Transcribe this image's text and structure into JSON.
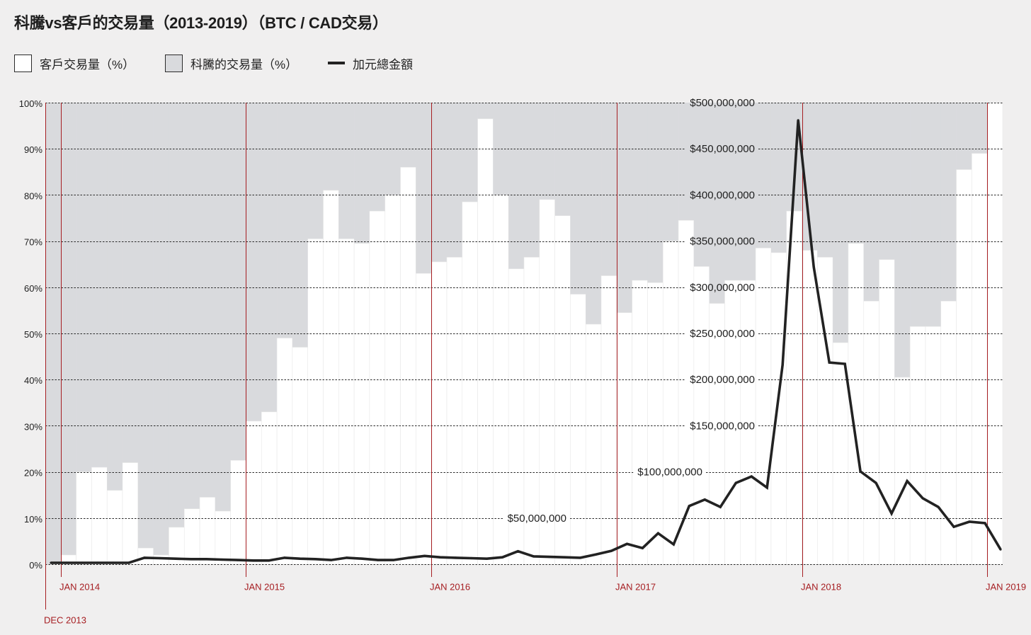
{
  "chart_data": {
    "type": "bar",
    "title": "科騰vs客戶的交易量（2013-2019）（BTC / CAD交易）",
    "series": [
      {
        "name": "客戶交易量（%）",
        "color": "#ffffff",
        "values": [
          0,
          2,
          20,
          21,
          16,
          22,
          3.5,
          2,
          8,
          12,
          14.5,
          11.5,
          22.5,
          31,
          33,
          49,
          47,
          70.5,
          81,
          70.5,
          69.5,
          76.5,
          80,
          86,
          63,
          65.5,
          66.5,
          78.5,
          96.5,
          80,
          64,
          66.5,
          79,
          75.5,
          58.5,
          52,
          62.5,
          54.5,
          61.5,
          61,
          70,
          74.5,
          64.5,
          56.5,
          61.5,
          61.5,
          68.5,
          67.5,
          76.5,
          68,
          66.5,
          48,
          69.5,
          57,
          66,
          40.5,
          51.5,
          51.5,
          57,
          85.5,
          89,
          100
        ]
      },
      {
        "name": "科騰的交易量（%）",
        "color": "#d9dadd",
        "values": [
          100,
          98,
          80,
          79,
          84,
          78,
          96.5,
          98,
          92,
          88,
          85.5,
          88.5,
          77.5,
          69,
          67,
          51,
          53,
          29.5,
          19,
          29.5,
          30.5,
          23.5,
          20,
          14,
          37,
          34.5,
          33.5,
          21.5,
          3.5,
          20,
          36,
          33.5,
          21,
          24.5,
          41.5,
          48,
          37.5,
          45.5,
          38.5,
          39,
          30,
          25.5,
          35.5,
          43.5,
          38.5,
          38.5,
          31.5,
          32.5,
          23.5,
          32,
          33.5,
          52,
          30.5,
          43,
          34,
          59.5,
          48.5,
          48.5,
          43,
          14.5,
          11,
          0
        ]
      },
      {
        "name": "加元總金額",
        "type": "line",
        "color": "#222222",
        "values": [
          1500000,
          1500000,
          1500000,
          1500000,
          1500000,
          1500000,
          7000000,
          6500000,
          6000000,
          5500000,
          5500000,
          5000000,
          4500000,
          4000000,
          4000000,
          7000000,
          6000000,
          5500000,
          4500000,
          7000000,
          6000000,
          4500000,
          4500000,
          7000000,
          9000000,
          7500000,
          7000000,
          6500000,
          6000000,
          7500000,
          14000000,
          8500000,
          8000000,
          7500000,
          7000000,
          10500000,
          14500000,
          22000000,
          17500000,
          33500000,
          21500000,
          63000000,
          70000000,
          62000000,
          88000000,
          95000000,
          83000000,
          216000000,
          481000000,
          322000000,
          218500000,
          217000000,
          100500000,
          88000000,
          55000000,
          90000000,
          71500000,
          62000000,
          40500000,
          46000000,
          44500000,
          16000000
        ]
      }
    ],
    "x_ticks": [
      {
        "label": "DEC 2013",
        "month_index": 0
      },
      {
        "label": "JAN 2014",
        "month_index": 1
      },
      {
        "label": "JAN 2015",
        "month_index": 13
      },
      {
        "label": "JAN 2016",
        "month_index": 25
      },
      {
        "label": "JAN 2017",
        "month_index": 37
      },
      {
        "label": "JAN 2018",
        "month_index": 49
      },
      {
        "label": "JAN 2019",
        "month_index": 61
      }
    ],
    "ylim": [
      0,
      100
    ],
    "y_ticks": [
      {
        "value": 0,
        "label": "0%"
      },
      {
        "value": 10,
        "label": "10%"
      },
      {
        "value": 20,
        "label": "20%"
      },
      {
        "value": 30,
        "label": "30%"
      },
      {
        "value": 40,
        "label": "40%"
      },
      {
        "value": 50,
        "label": "50%"
      },
      {
        "value": 60,
        "label": "60%"
      },
      {
        "value": 70,
        "label": "70%"
      },
      {
        "value": 80,
        "label": "80%"
      },
      {
        "value": 90,
        "label": "90%"
      },
      {
        "value": 100,
        "label": "100%"
      }
    ],
    "y2lim": [
      0,
      500000000
    ],
    "y2_ticks": [
      {
        "value": 50000000,
        "label": "$50,000,000"
      },
      {
        "value": 100000000,
        "label": "$100,000,000"
      },
      {
        "value": 150000000,
        "label": "$150,000,000"
      },
      {
        "value": 200000000,
        "label": "$200,000,000"
      },
      {
        "value": 250000000,
        "label": "$250,000,000"
      },
      {
        "value": 300000000,
        "label": "$300,000,000"
      },
      {
        "value": 350000000,
        "label": "$350,000,000"
      },
      {
        "value": 400000000,
        "label": "$400,000,000"
      },
      {
        "value": 450000000,
        "label": "$450,000,000"
      },
      {
        "value": 500000000,
        "label": "$500,000,000"
      }
    ],
    "grid": true,
    "grid_color": "#2a2a2a",
    "marker_color": "#a61e22"
  }
}
